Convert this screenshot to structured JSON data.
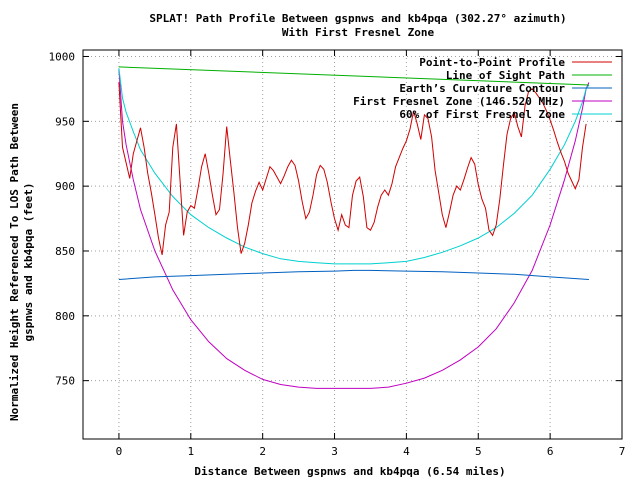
{
  "chart_data": {
    "type": "line",
    "title": "SPLAT! Path Profile Between gspnws and kb4pqa (302.27° azimuth)",
    "subtitle": "With First Fresnel Zone",
    "xlabel": "Distance Between gspnws and kb4pqa (6.54 miles)",
    "ylabel_lines": [
      "Normalized Height Referenced To LOS Path Between",
      "gspnws and kb4pqa (feet)"
    ],
    "xlim": [
      -0.5,
      7
    ],
    "ylim": [
      705,
      1005
    ],
    "xticks": [
      "0",
      "1",
      "2",
      "3",
      "4",
      "5",
      "6",
      "7"
    ],
    "yticks": [
      "750",
      "800",
      "850",
      "900",
      "950",
      "1000"
    ],
    "grid": true,
    "legend_position": "top-right",
    "series": [
      {
        "name": "Point-to-Point Profile",
        "color": "#d00000",
        "x": [
          0,
          0.05,
          0.1,
          0.15,
          0.2,
          0.25,
          0.3,
          0.35,
          0.4,
          0.45,
          0.5,
          0.55,
          0.6,
          0.65,
          0.7,
          0.75,
          0.8,
          0.85,
          0.9,
          0.95,
          1.0,
          1.05,
          1.1,
          1.15,
          1.2,
          1.25,
          1.3,
          1.35,
          1.4,
          1.45,
          1.5,
          1.55,
          1.6,
          1.65,
          1.7,
          1.75,
          1.8,
          1.85,
          1.9,
          1.95,
          2.0,
          2.05,
          2.1,
          2.15,
          2.2,
          2.25,
          2.3,
          2.35,
          2.4,
          2.45,
          2.5,
          2.55,
          2.6,
          2.65,
          2.7,
          2.75,
          2.8,
          2.85,
          2.9,
          2.95,
          3.0,
          3.05,
          3.1,
          3.15,
          3.2,
          3.25,
          3.3,
          3.35,
          3.4,
          3.45,
          3.5,
          3.55,
          3.6,
          3.65,
          3.7,
          3.75,
          3.8,
          3.85,
          3.9,
          3.95,
          4.0,
          4.05,
          4.1,
          4.15,
          4.2,
          4.25,
          4.3,
          4.35,
          4.4,
          4.45,
          4.5,
          4.55,
          4.6,
          4.65,
          4.7,
          4.75,
          4.8,
          4.85,
          4.9,
          4.95,
          5.0,
          5.05,
          5.1,
          5.15,
          5.2,
          5.25,
          5.3,
          5.35,
          5.4,
          5.45,
          5.5,
          5.55,
          5.6,
          5.65,
          5.7,
          5.75,
          5.8,
          5.85,
          5.9,
          5.95,
          6.0,
          6.05,
          6.1,
          6.15,
          6.2,
          6.25,
          6.3,
          6.35,
          6.4,
          6.45,
          6.5
        ],
        "values": [
          980,
          930,
          918,
          906,
          925,
          935,
          945,
          930,
          910,
          895,
          878,
          860,
          847,
          870,
          880,
          930,
          948,
          905,
          862,
          880,
          885,
          883,
          898,
          915,
          925,
          910,
          893,
          878,
          882,
          910,
          946,
          920,
          895,
          868,
          848,
          856,
          870,
          887,
          896,
          903,
          897,
          906,
          915,
          912,
          907,
          902,
          908,
          915,
          920,
          916,
          904,
          888,
          875,
          880,
          893,
          909,
          916,
          913,
          903,
          888,
          875,
          866,
          878,
          870,
          868,
          893,
          904,
          907,
          892,
          868,
          866,
          872,
          884,
          893,
          897,
          893,
          902,
          915,
          922,
          929,
          935,
          944,
          958,
          948,
          936,
          955,
          952,
          938,
          912,
          895,
          878,
          868,
          880,
          893,
          900,
          897,
          905,
          914,
          922,
          917,
          901,
          890,
          883,
          866,
          862,
          870,
          890,
          916,
          940,
          952,
          957,
          946,
          938,
          962,
          973,
          975,
          972,
          968,
          964,
          958,
          951,
          943,
          934,
          926,
          919,
          910,
          904,
          898,
          905,
          930,
          948
        ],
        "legend": "Point-to-Point Profile"
      },
      {
        "name": "Line of Sight Path",
        "color": "#00b000",
        "x": [
          0,
          6.54
        ],
        "values": [
          992,
          978
        ],
        "legend": "Line of Sight Path"
      },
      {
        "name": "Earth's Curvature Contour",
        "color": "#0060c0",
        "x": [
          0,
          0.5,
          1,
          1.5,
          2,
          2.5,
          3,
          3.27,
          3.5,
          4,
          4.5,
          5,
          5.5,
          6,
          6.54
        ],
        "values": [
          828,
          830,
          831,
          832,
          833,
          834,
          834.5,
          835,
          835,
          834.5,
          834,
          833,
          832,
          830,
          828
        ],
        "legend": "Earth’s Curvature Contour"
      },
      {
        "name": "First Fresnel Zone (146.520 MHz)",
        "color": "#c000c0",
        "x": [
          0,
          0.05,
          0.1,
          0.2,
          0.3,
          0.5,
          0.75,
          1,
          1.25,
          1.5,
          1.75,
          2,
          2.25,
          2.5,
          2.75,
          3,
          3.27,
          3.5,
          3.75,
          4,
          4.25,
          4.5,
          4.75,
          5,
          5.25,
          5.5,
          5.75,
          6,
          6.2,
          6.35,
          6.45,
          6.5,
          6.54
        ],
        "values": [
          990,
          950,
          932,
          905,
          882,
          850,
          820,
          797,
          780,
          767,
          758,
          751,
          747,
          745,
          744,
          744,
          744,
          744,
          745,
          748,
          752,
          758,
          766,
          776,
          790,
          810,
          835,
          870,
          905,
          935,
          960,
          975,
          980
        ],
        "legend": "First Fresnel Zone (146.520 MHz)"
      },
      {
        "name": "60% of First Fresnel Zone",
        "color": "#00d0d0",
        "x": [
          0,
          0.05,
          0.1,
          0.2,
          0.3,
          0.5,
          0.75,
          1,
          1.25,
          1.5,
          1.75,
          2,
          2.25,
          2.5,
          2.75,
          3,
          3.27,
          3.5,
          3.75,
          4,
          4.25,
          4.5,
          4.75,
          5,
          5.25,
          5.5,
          5.75,
          6,
          6.2,
          6.35,
          6.45,
          6.5,
          6.54
        ],
        "values": [
          991,
          968,
          957,
          942,
          928,
          910,
          892,
          878,
          868,
          860,
          853,
          848,
          844,
          842,
          841,
          840,
          840,
          840,
          841,
          842,
          845,
          849,
          854,
          860,
          868,
          879,
          893,
          913,
          932,
          950,
          965,
          975,
          978
        ],
        "legend": "60% of First Fresnel Zone"
      }
    ]
  }
}
